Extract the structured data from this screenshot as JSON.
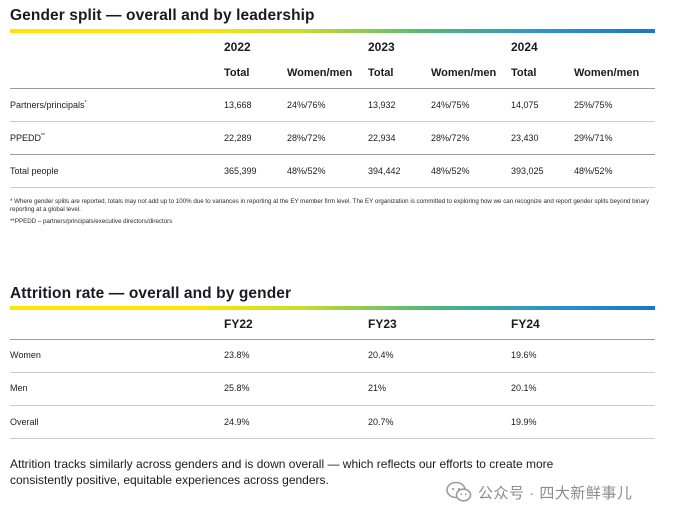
{
  "gender_split": {
    "title": "Gender split — overall and by leadership",
    "years": [
      "2022",
      "2023",
      "2024"
    ],
    "subheaders": [
      "Total",
      "Women/men"
    ],
    "rows": [
      {
        "label": "Partners/principals",
        "mark": "*",
        "values": [
          "13,668",
          "24%/76%",
          "13,932",
          "24%/75%",
          "14,075",
          "25%/75%"
        ]
      },
      {
        "label": "PPEDD",
        "mark": "**",
        "values": [
          "22,289",
          "28%/72%",
          "22,934",
          "28%/72%",
          "23,430",
          "29%/71%"
        ]
      },
      {
        "label": "Total people",
        "mark": "",
        "values": [
          "365,399",
          "48%/52%",
          "394,442",
          "48%/52%",
          "393,025",
          "48%/52%"
        ]
      }
    ],
    "footnote1": "* Where gender splits are reported, totals may not add up to 100% due to variances in reporting at the EY member firm level. The EY organization is committed to exploring how we can recognize and report gender splits beyond binary reporting at a global level.",
    "footnote2": "**PPEDD – partners/principals/executive directors/directors"
  },
  "attrition": {
    "title": "Attrition rate — overall and by gender",
    "years": [
      "FY22",
      "FY23",
      "FY24"
    ],
    "rows": [
      {
        "label": "Women",
        "values": [
          "23.8%",
          "20.4%",
          "19.6%"
        ]
      },
      {
        "label": "Men",
        "values": [
          "25.8%",
          "21%",
          "20.1%"
        ]
      },
      {
        "label": "Overall",
        "values": [
          "24.9%",
          "20.7%",
          "19.9%"
        ]
      }
    ]
  },
  "closing_text": "Attrition tracks similarly across genders and is down overall — which reflects our efforts to create more consistently positive, equitable experiences across genders.",
  "watermark": {
    "text": "公众号 · 四大新鲜事儿",
    "icon": "wechat-icon"
  },
  "colors": {
    "gradient_start": "#ffe600",
    "gradient_end": "#1a78c2",
    "text": "#1a1a24"
  }
}
